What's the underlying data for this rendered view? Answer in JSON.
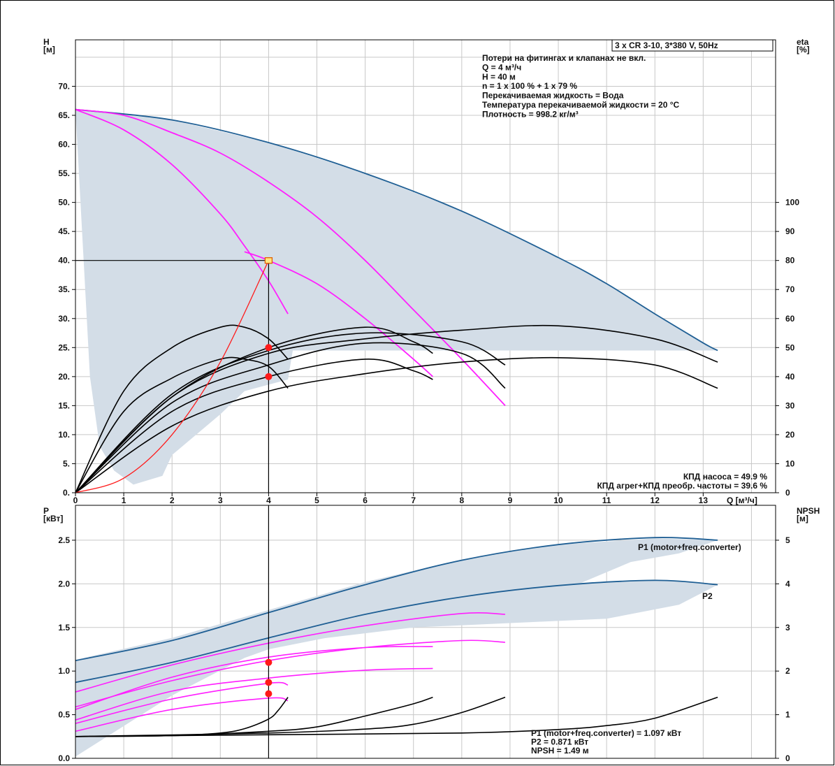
{
  "colors": {
    "band": "#d3dde7",
    "envelope": "#1f5f94",
    "magenta": "#ff1fff",
    "black": "#000000",
    "system": "#ff1a1a",
    "point": "#ff1a1a",
    "grid": "#c8c8c8"
  },
  "chart_data": [
    {
      "type": "line",
      "panel": "head-flow",
      "title": "3 x CR 3-10, 3*380 V, 50Hz",
      "xlabel": "Q [м³/ч]",
      "ylabel_left": "H\n[м]",
      "ylabel_right": "eta\n[%]",
      "xlim": [
        0,
        14.5
      ],
      "ylim": [
        0,
        78
      ],
      "x_ticks": [
        "0",
        "1",
        "2",
        "3",
        "4",
        "5",
        "6",
        "7",
        "8",
        "9",
        "10",
        "11",
        "12",
        "13"
      ],
      "y_ticks_left": [
        "0.",
        "5.",
        "10.",
        "15.",
        "20.",
        "25.",
        "30.",
        "35.",
        "40.",
        "45.",
        "50.",
        "55.",
        "60.",
        "65.",
        "70."
      ],
      "y_ticks_right": [
        "0",
        "10",
        "20",
        "30",
        "40",
        "50",
        "60",
        "70",
        "80",
        "90",
        "100"
      ],
      "info_lines": [
        "Потери на фитингах и клапанах не вкл.",
        "Q = 4 м³/ч",
        "H = 40 м",
        "n = 1 x 100 % + 1 x 79 %",
        "Перекачиваемая жидкость = Вода",
        "Температура перекачиваемой жидкости = 20 °C",
        "Плотность = 998.2 кг/м³"
      ],
      "results": [
        "КПД насоса = 49.9 %",
        "КПД агрег+КПД преобр. частоты = 39.6 %"
      ],
      "duty_point": {
        "q": 4,
        "h": 40
      },
      "guide_q": 4,
      "markers": [
        {
          "q": 4,
          "eta": 50
        },
        {
          "q": 4,
          "eta": 40
        }
      ],
      "band": {
        "upper": [
          [
            0,
            66
          ],
          [
            2,
            64.2
          ],
          [
            4,
            60.3
          ],
          [
            6,
            55
          ],
          [
            8,
            48.5
          ],
          [
            10,
            40.5
          ],
          [
            11,
            36
          ],
          [
            12,
            30.8
          ],
          [
            13,
            25.8
          ],
          [
            13.3,
            24.5
          ]
        ],
        "lower": [
          [
            13.3,
            24.5
          ],
          [
            8,
            24.5
          ],
          [
            6,
            24.5
          ],
          [
            5,
            24.5
          ],
          [
            4.5,
            24.5
          ],
          [
            4.45,
            22
          ],
          [
            4.4,
            19.5
          ],
          [
            3.5,
            17.5
          ],
          [
            3,
            13.5
          ],
          [
            2.5,
            10
          ],
          [
            2,
            6.5
          ],
          [
            1.8,
            2.9
          ],
          [
            1.2,
            1.4
          ],
          [
            0.8,
            3.8
          ],
          [
            0.5,
            8
          ],
          [
            0.3,
            20
          ],
          [
            0,
            66
          ]
        ]
      },
      "series": [
        {
          "role": "envelope",
          "points": [
            [
              0,
              66
            ],
            [
              2,
              64.2
            ],
            [
              4,
              60.3
            ],
            [
              6,
              55
            ],
            [
              8,
              48.5
            ],
            [
              10,
              40.5
            ],
            [
              11,
              36
            ],
            [
              12,
              30.8
            ],
            [
              13,
              25.8
            ],
            [
              13.3,
              24.5
            ]
          ]
        },
        {
          "role": "pump-head",
          "points": [
            [
              0,
              66
            ],
            [
              1,
              65
            ],
            [
              2,
              62
            ],
            [
              3,
              58.5
            ],
            [
              4,
              53.5
            ],
            [
              5,
              47.5
            ],
            [
              6,
              40
            ],
            [
              7,
              31.5
            ],
            [
              8,
              23
            ],
            [
              8.9,
              15
            ]
          ]
        },
        {
          "role": "pump-head",
          "points": [
            [
              0,
              66
            ],
            [
              1,
              62.5
            ],
            [
              2,
              56.5
            ],
            [
              3,
              48
            ],
            [
              3.5,
              42.5
            ],
            [
              4,
              36.5
            ],
            [
              4.4,
              30.8
            ]
          ]
        },
        {
          "role": "pump-head",
          "points": [
            [
              3.5,
              41.5
            ],
            [
              4,
              40
            ],
            [
              5,
              36
            ],
            [
              6,
              30
            ],
            [
              7,
              23
            ],
            [
              7.4,
              20
            ]
          ]
        },
        {
          "role": "eff",
          "points": [
            [
              0,
              0
            ],
            [
              1,
              35
            ],
            [
              2,
              50
            ],
            [
              3,
              57
            ],
            [
              3.5,
              57
            ],
            [
              4,
              53
            ],
            [
              4.4,
              46
            ]
          ]
        },
        {
          "role": "eff",
          "points": [
            [
              0,
              0
            ],
            [
              1,
              28
            ],
            [
              2,
              39.5
            ],
            [
              3,
              46
            ],
            [
              3.5,
              46
            ],
            [
              4,
              43.5
            ],
            [
              4.4,
              36
            ]
          ]
        },
        {
          "role": "eff",
          "points": [
            [
              0,
              0
            ],
            [
              2,
              33
            ],
            [
              4,
              50
            ],
            [
              6,
              57
            ],
            [
              7,
              52
            ],
            [
              7.4,
              48
            ]
          ]
        },
        {
          "role": "eff",
          "points": [
            [
              0,
              0
            ],
            [
              2,
              28
            ],
            [
              4,
              40
            ],
            [
              6,
              46
            ],
            [
              7,
              42
            ],
            [
              7.4,
              39
            ]
          ]
        },
        {
          "role": "eff",
          "points": [
            [
              0,
              0
            ],
            [
              2,
              34
            ],
            [
              4,
              49
            ],
            [
              6,
              55
            ],
            [
              8,
              52
            ],
            [
              8.9,
              44
            ]
          ]
        },
        {
          "role": "eff",
          "points": [
            [
              0,
              0
            ],
            [
              2,
              31
            ],
            [
              4,
              44
            ],
            [
              6,
              51.5
            ],
            [
              8,
              48
            ],
            [
              8.9,
              36
            ]
          ]
        },
        {
          "role": "eff",
          "points": [
            [
              0,
              0
            ],
            [
              2,
              33
            ],
            [
              4,
              48
            ],
            [
              6,
              53
            ],
            [
              8,
              56
            ],
            [
              10,
              57.5
            ],
            [
              12,
              53
            ],
            [
              13.3,
              45
            ]
          ]
        },
        {
          "role": "eff",
          "points": [
            [
              0,
              0
            ],
            [
              2,
              23
            ],
            [
              4,
              35
            ],
            [
              6,
              41
            ],
            [
              8,
              45
            ],
            [
              10,
              46.5
            ],
            [
              12,
              44
            ],
            [
              13.3,
              36
            ]
          ]
        },
        {
          "role": "system",
          "points": [
            [
              0,
              0
            ],
            [
              1,
              2.5
            ],
            [
              2,
              10
            ],
            [
              3,
              22.5
            ],
            [
              4,
              40
            ]
          ]
        }
      ]
    },
    {
      "type": "line",
      "panel": "power-npsh",
      "ylabel_left": "P\n[кВт]",
      "ylabel_right": "NPSH\n[м]",
      "xlim": [
        0,
        14.5
      ],
      "ylim": [
        0,
        2.9
      ],
      "y_ticks_left": [
        "0.0",
        "0.5",
        "1.0",
        "1.5",
        "2.0",
        "2.5"
      ],
      "y_ticks_right": [
        "0",
        "1",
        "2",
        "3",
        "4",
        "5"
      ],
      "curve_labels": [
        "P1 (motor+freq.converter)",
        "P2"
      ],
      "results": [
        "P1 (motor+freq.converter) = 1.097 кВт",
        "P2 = 0.871 кВт",
        "NPSH = 1.49 м"
      ],
      "markers": [
        {
          "q": 4,
          "p": 1.1
        },
        {
          "q": 4,
          "p": 0.87
        },
        {
          "q": 4,
          "p": 0.74
        }
      ],
      "band": {
        "upper": [
          [
            0,
            1.13
          ],
          [
            2,
            1.38
          ],
          [
            4,
            1.7
          ],
          [
            6,
            2.02
          ],
          [
            8,
            2.28
          ],
          [
            10,
            2.45
          ],
          [
            12,
            2.52
          ],
          [
            13.3,
            2.5
          ]
        ],
        "lower": [
          [
            13.3,
            2.5
          ],
          [
            12.5,
            2.35
          ],
          [
            11.5,
            2.25
          ],
          [
            10,
            1.9
          ],
          [
            9,
            1.78
          ],
          [
            8,
            1.55
          ],
          [
            7,
            1.5
          ],
          [
            6,
            1.47
          ],
          [
            4,
            1.25
          ],
          [
            3.5,
            1.15
          ],
          [
            2,
            0.72
          ],
          [
            0,
            0.02
          ]
        ]
      },
      "band2": {
        "upper": [
          [
            0,
            0.87
          ],
          [
            2,
            1.13
          ],
          [
            4,
            1.42
          ],
          [
            6,
            1.7
          ],
          [
            8,
            1.88
          ],
          [
            10,
            2.0
          ],
          [
            12,
            2.05
          ],
          [
            13.3,
            1.99
          ]
        ],
        "lower": [
          [
            13.3,
            1.99
          ],
          [
            12.5,
            1.76
          ],
          [
            11,
            1.6
          ],
          [
            9,
            1.55
          ],
          [
            7,
            1.5
          ],
          [
            4,
            1.3
          ],
          [
            3,
            1.05
          ],
          [
            0,
            0.85
          ]
        ]
      },
      "series": [
        {
          "role": "p1",
          "points": [
            [
              0,
              1.12
            ],
            [
              2,
              1.35
            ],
            [
              4,
              1.67
            ],
            [
              6,
              1.99
            ],
            [
              8,
              2.27
            ],
            [
              10,
              2.45
            ],
            [
              12,
              2.53
            ],
            [
              13.3,
              2.5
            ]
          ]
        },
        {
          "role": "p2",
          "points": [
            [
              0,
              0.87
            ],
            [
              2,
              1.1
            ],
            [
              4,
              1.38
            ],
            [
              6,
              1.65
            ],
            [
              8,
              1.85
            ],
            [
              10,
              1.98
            ],
            [
              12,
              2.04
            ],
            [
              13.3,
              1.99
            ]
          ]
        },
        {
          "role": "power",
          "points": [
            [
              0,
              0.56
            ],
            [
              2,
              0.93
            ],
            [
              4,
              1.16
            ],
            [
              6,
              1.27
            ],
            [
              7.4,
              1.28
            ]
          ]
        },
        {
          "role": "power",
          "points": [
            [
              0,
              0.44
            ],
            [
              2,
              0.77
            ],
            [
              4,
              0.92
            ],
            [
              6,
              1.01
            ],
            [
              7.4,
              1.03
            ]
          ]
        },
        {
          "role": "power",
          "points": [
            [
              0,
              0.76
            ],
            [
              2,
              1.07
            ],
            [
              4,
              1.32
            ],
            [
              6,
              1.52
            ],
            [
              8,
              1.66
            ],
            [
              8.9,
              1.65
            ]
          ]
        },
        {
          "role": "power",
          "points": [
            [
              0,
              0.59
            ],
            [
              2,
              0.89
            ],
            [
              4,
              1.12
            ],
            [
              6,
              1.27
            ],
            [
              8,
              1.35
            ],
            [
              8.9,
              1.33
            ]
          ]
        },
        {
          "role": "power",
          "points": [
            [
              0,
              0.4
            ],
            [
              2,
              0.68
            ],
            [
              4,
              0.86
            ],
            [
              4.4,
              0.84
            ]
          ]
        },
        {
          "role": "power",
          "points": [
            [
              0,
              0.31
            ],
            [
              2,
              0.56
            ],
            [
              4,
              0.69
            ],
            [
              4.4,
              0.66
            ]
          ]
        },
        {
          "role": "npsh",
          "points": [
            [
              0,
              0.5
            ],
            [
              2,
              0.52
            ],
            [
              3,
              0.58
            ],
            [
              3.5,
              0.68
            ],
            [
              4,
              0.9
            ],
            [
              4.2,
              1.1
            ],
            [
              4.4,
              1.4
            ]
          ]
        },
        {
          "role": "npsh",
          "points": [
            [
              0,
              0.5
            ],
            [
              2,
              0.52
            ],
            [
              4,
              0.62
            ],
            [
              5,
              0.72
            ],
            [
              6,
              0.97
            ],
            [
              7,
              1.25
            ],
            [
              7.4,
              1.4
            ]
          ]
        },
        {
          "role": "npsh",
          "points": [
            [
              0,
              0.5
            ],
            [
              4,
              0.58
            ],
            [
              6,
              0.67
            ],
            [
              7,
              0.78
            ],
            [
              8,
              1.05
            ],
            [
              8.9,
              1.4
            ]
          ]
        },
        {
          "role": "npsh",
          "points": [
            [
              0,
              0.5
            ],
            [
              4,
              0.54
            ],
            [
              8,
              0.58
            ],
            [
              10,
              0.66
            ],
            [
              11,
              0.75
            ],
            [
              12,
              0.92
            ],
            [
              13.3,
              1.4
            ]
          ]
        }
      ]
    }
  ]
}
